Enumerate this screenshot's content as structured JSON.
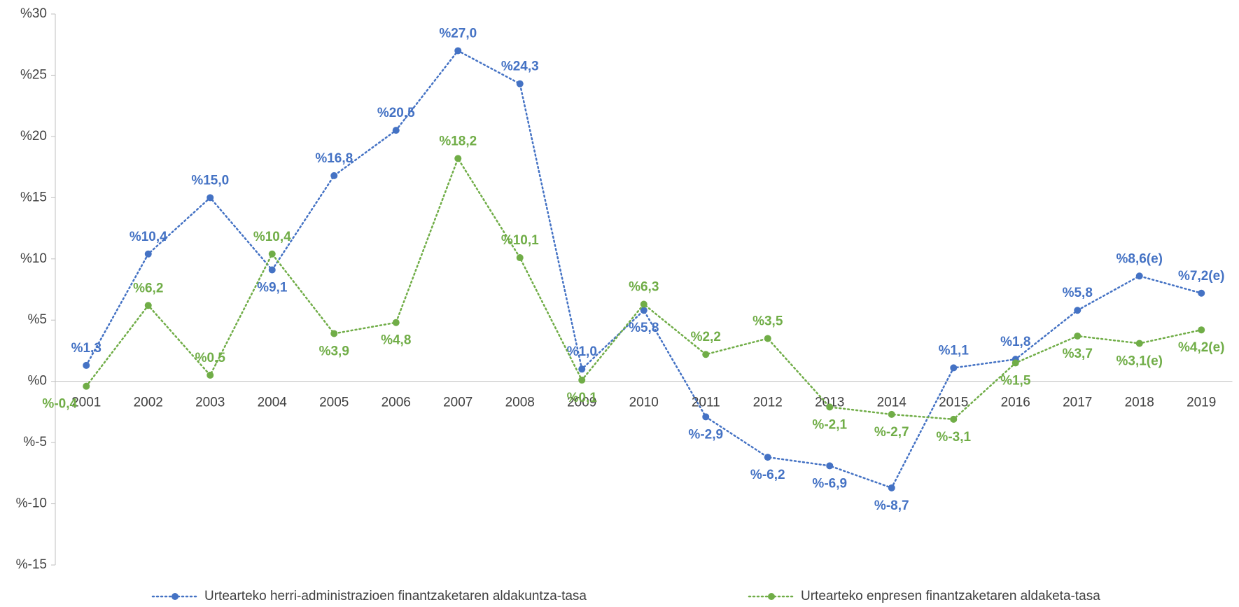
{
  "chart_data": {
    "type": "line",
    "categories": [
      "2001",
      "2002",
      "2003",
      "2004",
      "2005",
      "2006",
      "2007",
      "2008",
      "2009",
      "2010",
      "2011",
      "2012",
      "2013",
      "2014",
      "2015",
      "2016",
      "2017",
      "2018",
      "2019"
    ],
    "series": [
      {
        "name": "Urtearteko herri-administrazioen finantzaketaren aldakuntza-tasa",
        "color": "#4472c4",
        "values": [
          1.3,
          10.4,
          15.0,
          9.1,
          16.8,
          20.5,
          27.0,
          24.3,
          1.0,
          5.8,
          -2.9,
          -6.2,
          -6.9,
          -8.7,
          1.1,
          1.8,
          5.8,
          8.6,
          7.2
        ],
        "value_labels": [
          "%1,3",
          "%10,4",
          "%15,0",
          "%9,1",
          "%16,8",
          "%20,5",
          "%27,0",
          "%24,3",
          "%1,0",
          "%5,8",
          "%-2,9",
          "%-6,2",
          "%-6,9",
          "%-8,7",
          "%1,1",
          "%1,8",
          "%5,8",
          "%8,6(e)",
          "%7,2(e)"
        ]
      },
      {
        "name": "Urtearteko enpresen finantzaketaren aldaketa-tasa",
        "color": "#70ad47",
        "values": [
          -0.4,
          6.2,
          0.5,
          10.4,
          3.9,
          4.8,
          18.2,
          10.1,
          0.1,
          6.3,
          2.2,
          3.5,
          -2.1,
          -2.7,
          -3.1,
          1.5,
          3.7,
          3.1,
          4.2
        ],
        "value_labels": [
          "%-0,4",
          "%6,2",
          "%0,5",
          "%10,4",
          "%3,9",
          "%4,8",
          "%18,2",
          "%10,1",
          "%0,1",
          "%6,3",
          "%2,2",
          "%3,5",
          "%-2,1",
          "%-2,7",
          "%-3,1",
          "%1,5",
          "%3,7",
          "%3,1(e)",
          "%4,2(e)"
        ]
      }
    ],
    "ylim": [
      -15,
      30
    ],
    "yticks": [
      {
        "value": -15,
        "label": "%-15"
      },
      {
        "value": -10,
        "label": "%-10"
      },
      {
        "value": -5,
        "label": "%-5"
      },
      {
        "value": 0,
        "label": "%0"
      },
      {
        "value": 5,
        "label": "%5"
      },
      {
        "value": 10,
        "label": "%10"
      },
      {
        "value": 15,
        "label": "%15"
      },
      {
        "value": 20,
        "label": "%20"
      },
      {
        "value": 25,
        "label": "%25"
      },
      {
        "value": 30,
        "label": "%30"
      }
    ],
    "legend": "bottom"
  }
}
